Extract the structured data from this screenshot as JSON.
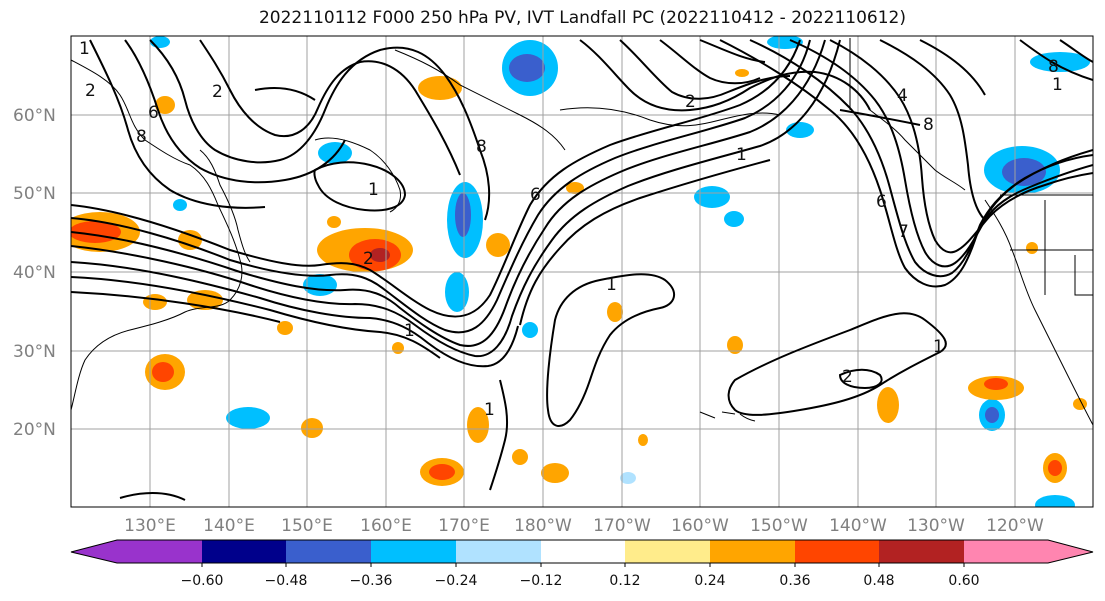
{
  "title": "2022110112 F000 250 hPa PV, IVT Landfall PC (2022110412 - 2022110612)",
  "map": {
    "latitude_labels": [
      "60°N",
      "50°N",
      "40°N",
      "30°N",
      "20°N"
    ],
    "longitude_labels": [
      "130°E",
      "140°E",
      "150°E",
      "160°E",
      "170°E",
      "180°W",
      "170°W",
      "160°W",
      "150°W",
      "140°W",
      "130°W",
      "120°W"
    ],
    "contour_labels": [
      "1",
      "2",
      "4",
      "6",
      "8",
      "1",
      "2",
      "8",
      "1",
      "2",
      "6",
      "8",
      "1",
      "2",
      "8",
      "7",
      "6",
      "1",
      "1",
      "2",
      "1",
      "1"
    ],
    "colors": {
      "contour_line": "#000000",
      "coastline": "#000000",
      "gridline": "#a0a0a0",
      "axis_label": "#808080"
    }
  },
  "colorbar": {
    "tick_labels": [
      "−0.60",
      "−0.48",
      "−0.36",
      "−0.24",
      "−0.12",
      "0.12",
      "0.24",
      "0.36",
      "0.48",
      "0.60"
    ],
    "colors": [
      "#9933cc",
      "#00008b",
      "#3a5fcd",
      "#00bfff",
      "#b0e2ff",
      "#ffffff",
      "#ffec8b",
      "#ffa500",
      "#ff4500",
      "#b22222",
      "#ff85b0"
    ],
    "extend": "both"
  }
}
